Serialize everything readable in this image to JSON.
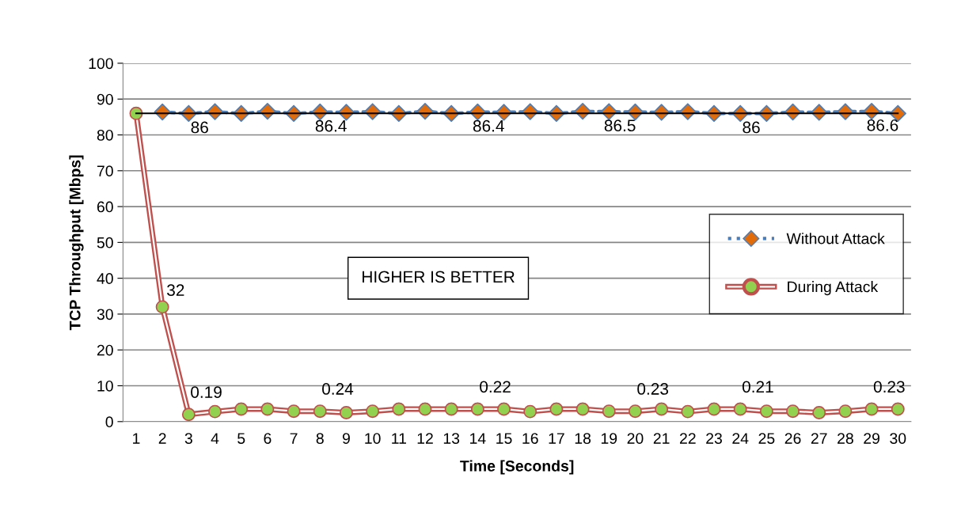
{
  "chart_data": {
    "type": "line",
    "xlabel": "Time [Seconds]",
    "ylabel": "TCP Throughput [Mbps]",
    "categories": [
      "1",
      "2",
      "3",
      "4",
      "5",
      "6",
      "7",
      "8",
      "9",
      "10",
      "11",
      "12",
      "13",
      "14",
      "15",
      "16",
      "17",
      "18",
      "19",
      "20",
      "21",
      "22",
      "23",
      "24",
      "25",
      "26",
      "27",
      "28",
      "29",
      "30"
    ],
    "ylim": [
      0,
      100
    ],
    "yticks": [
      0,
      10,
      20,
      30,
      40,
      50,
      60,
      70,
      80,
      90,
      100
    ],
    "grid": "y",
    "legend": "right",
    "annotations": [
      "HIGHER IS BETTER",
      {
        "text": "0.19",
        "x": "3",
        "y": 2
      },
      {
        "text": "0.24",
        "x": "8",
        "y": 2.9
      },
      {
        "text": "0.22",
        "x": "14",
        "y": 3.5
      },
      {
        "text": "0.23",
        "x": "20",
        "y": 2.9
      },
      {
        "text": "0.21",
        "x": "24",
        "y": 3.5
      },
      {
        "text": "0.23",
        "x": "29",
        "y": 3.5
      }
    ],
    "series": [
      {
        "name": "Without Attack",
        "color": "#4a7ebb",
        "colors": [
          "#e36c0a",
          "#e36c0a",
          "#e36c0a",
          "#e36c0a",
          "#e36c0a",
          "#e36c0a",
          "#e36c0a",
          "#e36c0a",
          "#e36c0a",
          "#e36c0a",
          "#e36c0a",
          "#e36c0a",
          "#e36c0a",
          "#e36c0a",
          "#e36c0a",
          "#e36c0a",
          "#e36c0a",
          "#e36c0a",
          "#e36c0a",
          "#e36c0a",
          "#e36c0a",
          "#e36c0a",
          "#e36c0a",
          "#e36c0a",
          "#e36c0a",
          "#e36c0a",
          "#e36c0a",
          "#e36c0a",
          "#e36c0a",
          "#e36c0a"
        ],
        "marker": "diamond",
        "line_style": "dotted",
        "values": [
          null,
          86.4,
          86,
          86.5,
          86,
          86.6,
          86,
          86.4,
          86.3,
          86.5,
          86,
          86.6,
          86,
          86.4,
          86.3,
          86.5,
          86,
          86.6,
          86.5,
          86.4,
          86.3,
          86.5,
          86,
          86,
          86,
          86.4,
          86.3,
          86.5,
          86.6,
          86
        ],
        "value_labels": [
          null,
          null,
          "86",
          null,
          null,
          null,
          null,
          "86.4",
          null,
          null,
          null,
          null,
          null,
          "86.4",
          null,
          null,
          null,
          null,
          "86.5",
          null,
          null,
          null,
          null,
          "86",
          null,
          null,
          null,
          null,
          "86.6",
          null
        ]
      },
      {
        "type": "line",
        "color": "#000000",
        "line_style": "solid",
        "marker": "none",
        "values": [
          86,
          86,
          86,
          86,
          86,
          86,
          86,
          86,
          86,
          86,
          86,
          86,
          86,
          86,
          86,
          86,
          86,
          86,
          86,
          86,
          86,
          86,
          86,
          86,
          86,
          86,
          86,
          86,
          86,
          86
        ]
      },
      {
        "name": "During Attack",
        "color": "#c0504d",
        "colors": [
          "#92d050",
          "#92d050",
          "#92d050",
          "#92d050",
          "#92d050",
          "#92d050",
          "#92d050",
          "#92d050",
          "#92d050",
          "#92d050",
          "#92d050",
          "#92d050",
          "#92d050",
          "#92d050",
          "#92d050",
          "#92d050",
          "#92d050",
          "#92d050",
          "#92d050",
          "#92d050",
          "#92d050",
          "#92d050",
          "#92d050",
          "#92d050",
          "#92d050",
          "#92d050",
          "#92d050",
          "#92d050",
          "#92d050",
          "#92d050"
        ],
        "marker": "circle",
        "line_style": "solid",
        "values": [
          86,
          32,
          2,
          2.8,
          3.5,
          3.5,
          2.9,
          2.9,
          2.5,
          2.9,
          3.5,
          3.5,
          3.5,
          3.5,
          3.5,
          2.8,
          3.5,
          3.5,
          2.9,
          2.9,
          3.5,
          2.8,
          3.5,
          3.5,
          2.9,
          2.9,
          2.5,
          2.9,
          3.5,
          3.5
        ],
        "value_labels": [
          null,
          "32",
          null,
          null,
          null,
          null,
          null,
          null,
          null,
          null,
          null,
          null,
          null,
          null,
          null,
          null,
          null,
          null,
          null,
          null,
          null,
          null,
          null,
          null,
          null,
          null,
          null,
          null,
          null,
          null
        ]
      }
    ]
  }
}
